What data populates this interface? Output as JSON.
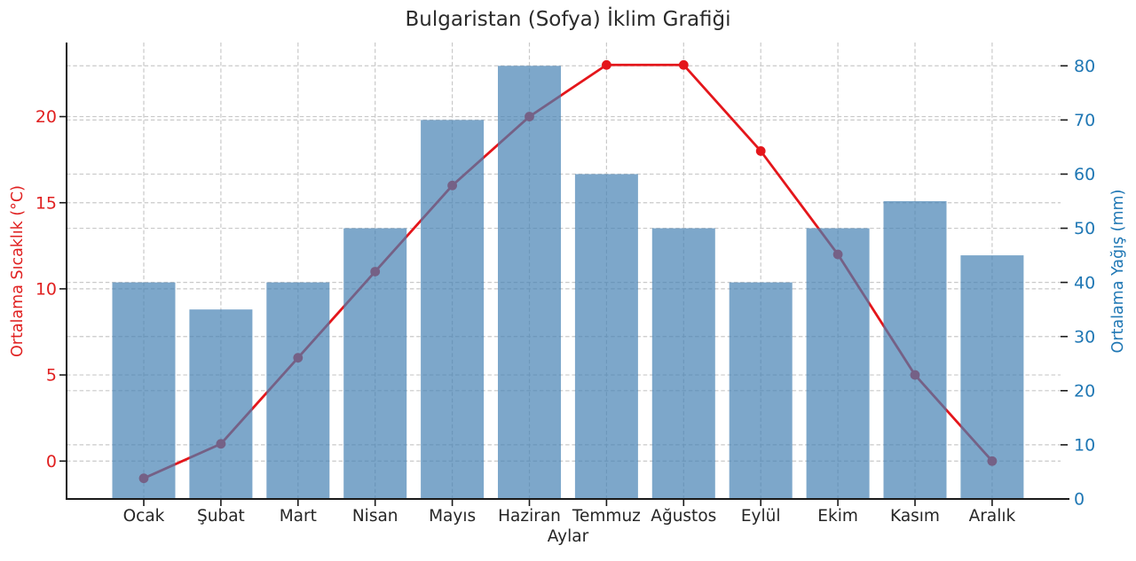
{
  "title": "Bulgaristan (Sofya) İklim Grafiği",
  "chart_data": {
    "type": "bar+line",
    "categories": [
      "Ocak",
      "Şubat",
      "Mart",
      "Nisan",
      "Mayıs",
      "Haziran",
      "Temmuz",
      "Ağustos",
      "Eylül",
      "Ekim",
      "Kasım",
      "Aralık"
    ],
    "series": [
      {
        "name": "Ortalama Yağış (mm)",
        "type": "bar",
        "axis": "right",
        "values": [
          40,
          35,
          40,
          50,
          70,
          80,
          60,
          50,
          40,
          50,
          55,
          45
        ],
        "color": "#4682B4",
        "opacity": 0.7
      },
      {
        "name": "Ortalama Sıcaklık (°C)",
        "type": "line",
        "axis": "left",
        "values": [
          -1,
          1,
          6,
          11,
          16,
          20,
          23,
          23,
          18,
          12,
          5,
          0
        ],
        "color": "#e4161b",
        "marker": "circle"
      }
    ],
    "title": "Bulgaristan (Sofya) İklim Grafiği",
    "xlabel": "Aylar",
    "ylabel_left": "Ortalama Sıcaklık (°C)",
    "ylabel_right": "Ortalama Yağış (mm)",
    "left_ticks": [
      0,
      5,
      10,
      15,
      20
    ],
    "right_ticks": [
      0,
      10,
      20,
      30,
      40,
      50,
      60,
      70,
      80
    ],
    "left_ylim": [
      -2.2,
      24.3
    ],
    "right_ylim": [
      0,
      84.3
    ],
    "grid": true,
    "legend": "none",
    "colors": {
      "left_axis_text": "#e02020",
      "right_axis_text": "#1f77b4",
      "month_text": "#262626",
      "title_text": "#2b2b2b",
      "grid": "#c9c9c9",
      "spine": "#1a1a1a"
    }
  }
}
